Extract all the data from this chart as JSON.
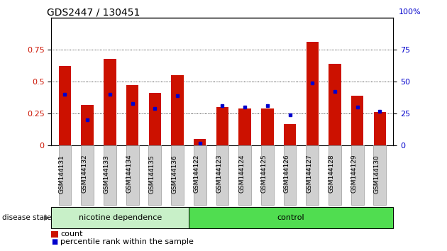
{
  "title": "GDS2447 / 130451",
  "samples": [
    "GSM144131",
    "GSM144132",
    "GSM144133",
    "GSM144134",
    "GSM144135",
    "GSM144136",
    "GSM144122",
    "GSM144123",
    "GSM144124",
    "GSM144125",
    "GSM144126",
    "GSM144127",
    "GSM144128",
    "GSM144129",
    "GSM144130"
  ],
  "count_values": [
    0.62,
    0.32,
    0.68,
    0.47,
    0.41,
    0.55,
    0.05,
    0.3,
    0.29,
    0.29,
    0.17,
    0.81,
    0.64,
    0.39,
    0.26
  ],
  "percentile_values": [
    0.4,
    0.2,
    0.4,
    0.33,
    0.29,
    0.39,
    0.02,
    0.31,
    0.3,
    0.31,
    0.24,
    0.49,
    0.42,
    0.3,
    0.27
  ],
  "groups": [
    {
      "label": "nicotine dependence",
      "start": 0,
      "end": 6
    },
    {
      "label": "control",
      "start": 6,
      "end": 15
    }
  ],
  "nicotine_color": "#c8f0c8",
  "control_color": "#50dd50",
  "ylim_left": [
    0,
    1.0
  ],
  "ylim_right": [
    0,
    100
  ],
  "yticks_left": [
    0,
    0.25,
    0.5,
    0.75
  ],
  "yticks_right": [
    0,
    25,
    50,
    75
  ],
  "bar_color": "#cc1100",
  "dot_color": "#0000cc",
  "tick_bg_color": "#d0d0d0",
  "disease_state_label": "disease state"
}
